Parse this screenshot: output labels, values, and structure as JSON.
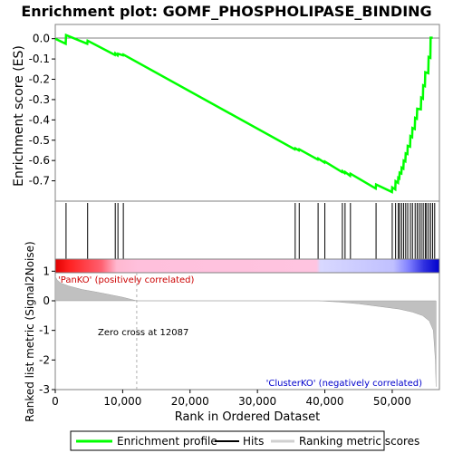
{
  "chart_data": {
    "type": "line",
    "title": "Enrichment plot: GOMF_PHOSPHOLIPASE_BINDING",
    "xlabel": "Rank in Ordered Dataset",
    "ylabel_top": "Enrichment score (ES)",
    "ylabel_bottom": "Ranked list metric (Signal2Noise)",
    "xlim": [
      0,
      57000
    ],
    "x_ticks": [
      0,
      10000,
      20000,
      30000,
      40000,
      50000
    ],
    "x_tick_labels": [
      "0",
      "10,000",
      "20,000",
      "30,000",
      "40,000",
      "50,000"
    ],
    "es_ylim": [
      -0.8,
      0.07
    ],
    "es_ticks": [
      0.0,
      -0.1,
      -0.2,
      -0.3,
      -0.4,
      -0.5,
      -0.6,
      -0.7
    ],
    "es_tick_labels": [
      "0.0",
      "-0.1",
      "-0.2",
      "-0.3",
      "-0.4",
      "-0.5",
      "-0.6",
      "-0.7"
    ],
    "metric_ylim": [
      -3,
      1.5
    ],
    "metric_ticks": [
      1,
      0,
      -1,
      -2,
      -3
    ],
    "metric_tick_labels": [
      "1",
      "0",
      "-1",
      "-2",
      "-3"
    ],
    "total_genes": 56500,
    "zero_cross": 12087,
    "hits": [
      1600,
      4800,
      8900,
      9300,
      10100,
      35600,
      36200,
      39000,
      40000,
      42600,
      43000,
      43800,
      47600,
      50000,
      50500,
      50900,
      51100,
      51400,
      51700,
      52000,
      52300,
      52700,
      53000,
      53400,
      53700,
      54000,
      54300,
      54600,
      54900,
      55100,
      55400,
      55700,
      56000,
      56300
    ],
    "es_profile": [
      [
        0,
        0.0
      ],
      [
        1550,
        -0.025
      ],
      [
        1600,
        0.018
      ],
      [
        4750,
        -0.025
      ],
      [
        4800,
        -0.01
      ],
      [
        8850,
        -0.08
      ],
      [
        8900,
        -0.072
      ],
      [
        9250,
        -0.082
      ],
      [
        9300,
        -0.074
      ],
      [
        10050,
        -0.082
      ],
      [
        10100,
        -0.078
      ],
      [
        35550,
        -0.545
      ],
      [
        35600,
        -0.54
      ],
      [
        36150,
        -0.55
      ],
      [
        36200,
        -0.545
      ],
      [
        38950,
        -0.595
      ],
      [
        39000,
        -0.59
      ],
      [
        39950,
        -0.61
      ],
      [
        40000,
        -0.605
      ],
      [
        42550,
        -0.657
      ],
      [
        42600,
        -0.652
      ],
      [
        42950,
        -0.662
      ],
      [
        43000,
        -0.657
      ],
      [
        43750,
        -0.675
      ],
      [
        43800,
        -0.665
      ],
      [
        47550,
        -0.738
      ],
      [
        47600,
        -0.718
      ],
      [
        49950,
        -0.755
      ],
      [
        50000,
        -0.732
      ],
      [
        50450,
        -0.742
      ],
      [
        50500,
        -0.702
      ],
      [
        50850,
        -0.71
      ],
      [
        50900,
        -0.685
      ],
      [
        51050,
        -0.688
      ],
      [
        51100,
        -0.66
      ],
      [
        51350,
        -0.664
      ],
      [
        51400,
        -0.635
      ],
      [
        51650,
        -0.64
      ],
      [
        51700,
        -0.6
      ],
      [
        51950,
        -0.604
      ],
      [
        52000,
        -0.565
      ],
      [
        52250,
        -0.568
      ],
      [
        52300,
        -0.528
      ],
      [
        52650,
        -0.532
      ],
      [
        52700,
        -0.48
      ],
      [
        52950,
        -0.485
      ],
      [
        53000,
        -0.44
      ],
      [
        53350,
        -0.445
      ],
      [
        53400,
        -0.39
      ],
      [
        53650,
        -0.394
      ],
      [
        53700,
        -0.345
      ],
      [
        54250,
        -0.348
      ],
      [
        54300,
        -0.29
      ],
      [
        54550,
        -0.295
      ],
      [
        54600,
        -0.23
      ],
      [
        54850,
        -0.234
      ],
      [
        54900,
        -0.165
      ],
      [
        55350,
        -0.17
      ],
      [
        55400,
        -0.09
      ],
      [
        55650,
        -0.094
      ],
      [
        55700,
        0.005
      ],
      [
        56000,
        0.005
      ]
    ],
    "metric_profile": [
      [
        0,
        0.82
      ],
      [
        300,
        0.7
      ],
      [
        800,
        0.6
      ],
      [
        2000,
        0.5
      ],
      [
        4000,
        0.38
      ],
      [
        6000,
        0.3
      ],
      [
        8000,
        0.21
      ],
      [
        10000,
        0.12
      ],
      [
        12087,
        0.0
      ],
      [
        39000,
        0.0
      ],
      [
        42000,
        -0.04
      ],
      [
        45000,
        -0.1
      ],
      [
        48000,
        -0.19
      ],
      [
        51000,
        -0.28
      ],
      [
        53000,
        -0.38
      ],
      [
        54500,
        -0.5
      ],
      [
        55500,
        -0.68
      ],
      [
        56100,
        -1.0
      ],
      [
        56400,
        -2.0
      ],
      [
        56500,
        -2.9
      ]
    ],
    "annotations": {
      "pos_label": "'PanKO' (positively correlated)",
      "neg_label": "'ClusterKO' (negatively correlated)",
      "zero_cross_label": "Zero cross at 12087"
    },
    "legend": {
      "placement": "bottom",
      "items": [
        "Enrichment profile",
        "Hits",
        "Ranking metric scores"
      ]
    },
    "colors": {
      "profile": "#00ff00",
      "hits": "#000000",
      "metric_fill": "#c0c0c0",
      "pos_label": "#cc0000",
      "neg_label": "#0000cc",
      "heat_red": "#ff0000",
      "heat_pink": "#ffc0d8",
      "heat_lavender": "#d0d0ff",
      "heat_blue": "#0000ff"
    }
  }
}
